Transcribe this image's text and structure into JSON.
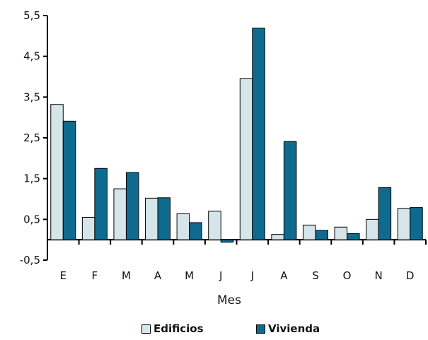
{
  "chart_data": {
    "type": "bar",
    "categories": [
      "E",
      "F",
      "M",
      "A",
      "M",
      "J",
      "J",
      "A",
      "S",
      "O",
      "N",
      "D"
    ],
    "series": [
      {
        "name": "Edificios",
        "color": "#d6e5ea",
        "values": [
          3.32,
          0.55,
          1.25,
          1.02,
          0.64,
          0.7,
          3.95,
          0.13,
          0.36,
          0.31,
          0.5,
          0.77
        ]
      },
      {
        "name": "Vivienda",
        "color": "#0e6b8f",
        "values": [
          2.91,
          1.75,
          1.65,
          1.03,
          0.42,
          -0.06,
          5.19,
          2.41,
          0.23,
          0.15,
          1.28,
          0.79
        ]
      }
    ],
    "xlabel": "Mes",
    "ylabel": "",
    "ylim": [
      -0.5,
      5.5
    ],
    "yticks": [
      -0.5,
      0.5,
      1.5,
      2.5,
      3.5,
      4.5,
      5.5
    ],
    "ytick_labels": [
      "-0,5",
      "0,5",
      "1,5",
      "2,5",
      "3,5",
      "4,5",
      "5,5"
    ],
    "grid": false,
    "legend": "bottom"
  }
}
